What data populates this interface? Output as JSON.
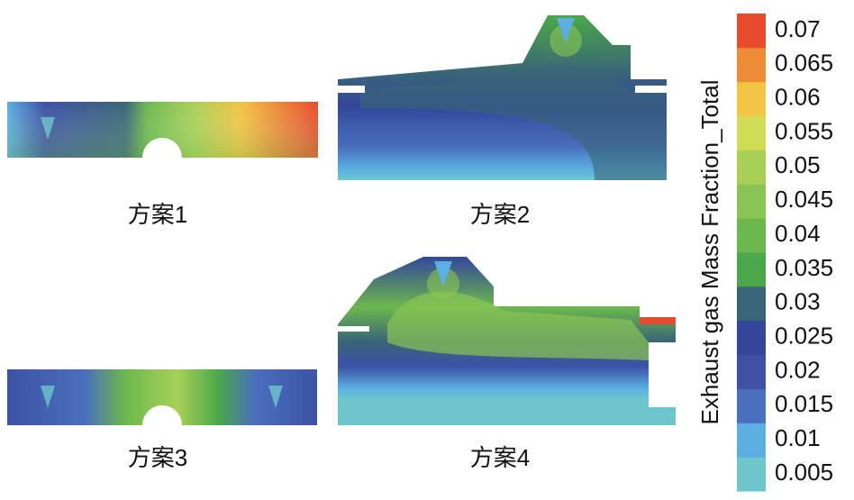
{
  "panels": [
    {
      "label": "方案1"
    },
    {
      "label": "方案2"
    },
    {
      "label": "方案3"
    },
    {
      "label": "方案4"
    }
  ],
  "colorbar": {
    "title": "Exhaust gas Mass Fraction_Total",
    "ticks": [
      0.005,
      0.01,
      0.015,
      0.02,
      0.025,
      0.03,
      0.035,
      0.04,
      0.045,
      0.05,
      0.055,
      0.06,
      0.065,
      0.07
    ],
    "colors": [
      "#6ec6cc",
      "#5aaee0",
      "#4a6fbd",
      "#3d52a6",
      "#33479a",
      "#3a6577",
      "#4aa84a",
      "#6cb84e",
      "#8ac454",
      "#a8d058",
      "#cfdc55",
      "#f2c443",
      "#ef8a36",
      "#e84a2d"
    ]
  }
}
